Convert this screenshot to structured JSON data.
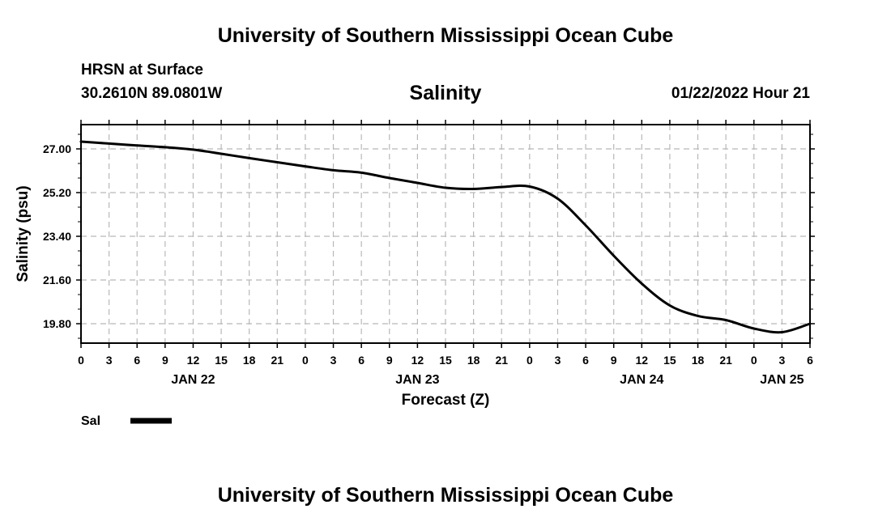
{
  "header": {
    "title_top": "University of Southern Mississippi Ocean Cube",
    "station": "HRSN at Surface",
    "coords": "30.2610N  89.0801W",
    "variable": "Salinity",
    "datetime": "01/22/2022 Hour 21",
    "title_bottom": "University of Southern Mississippi Ocean Cube"
  },
  "chart_data": {
    "type": "line",
    "title": "Salinity",
    "xlabel": "Forecast (Z)",
    "ylabel": "Salinity (psu)",
    "xlim": [
      0,
      78
    ],
    "ylim": [
      19.0,
      28.0
    ],
    "y_ticks": [
      19.8,
      21.6,
      23.4,
      25.2,
      27.0
    ],
    "y_tick_labels": [
      "19.80",
      "21.60",
      "23.40",
      "25.20",
      "27.00"
    ],
    "y_minor_ticks": [
      19.2,
      20.4,
      21.0,
      22.2,
      22.8,
      24.0,
      24.6,
      25.8,
      26.4,
      27.6
    ],
    "x_ticks": [
      0,
      3,
      6,
      9,
      12,
      15,
      18,
      21,
      24,
      27,
      30,
      33,
      36,
      39,
      42,
      45,
      48,
      51,
      54,
      57,
      60,
      63,
      66,
      69,
      72,
      75,
      78
    ],
    "x_tick_labels": [
      "0",
      "3",
      "6",
      "9",
      "12",
      "15",
      "18",
      "21",
      "0",
      "3",
      "6",
      "9",
      "12",
      "15",
      "18",
      "21",
      "0",
      "3",
      "6",
      "9",
      "12",
      "15",
      "18",
      "21",
      "0",
      "3",
      "6"
    ],
    "day_labels": [
      {
        "x": 12,
        "label": "JAN 22"
      },
      {
        "x": 36,
        "label": "JAN 23"
      },
      {
        "x": 60,
        "label": "JAN 24"
      },
      {
        "x": 75,
        "label": "JAN 25"
      }
    ],
    "grid": true,
    "legend": {
      "position": "bottom-left",
      "entries": [
        "Sal"
      ]
    },
    "series": [
      {
        "name": "Sal",
        "color": "#000000",
        "x": [
          0,
          3,
          6,
          9,
          12,
          15,
          18,
          21,
          24,
          27,
          30,
          33,
          36,
          39,
          42,
          45,
          48,
          51,
          54,
          57,
          60,
          63,
          66,
          69,
          72,
          75,
          78
        ],
        "y": [
          27.3,
          27.22,
          27.14,
          27.07,
          26.97,
          26.8,
          26.62,
          26.45,
          26.28,
          26.12,
          26.02,
          25.8,
          25.6,
          25.4,
          25.35,
          25.43,
          25.45,
          24.95,
          23.85,
          22.6,
          21.45,
          20.55,
          20.12,
          19.95,
          19.6,
          19.45,
          19.8
        ]
      }
    ]
  }
}
